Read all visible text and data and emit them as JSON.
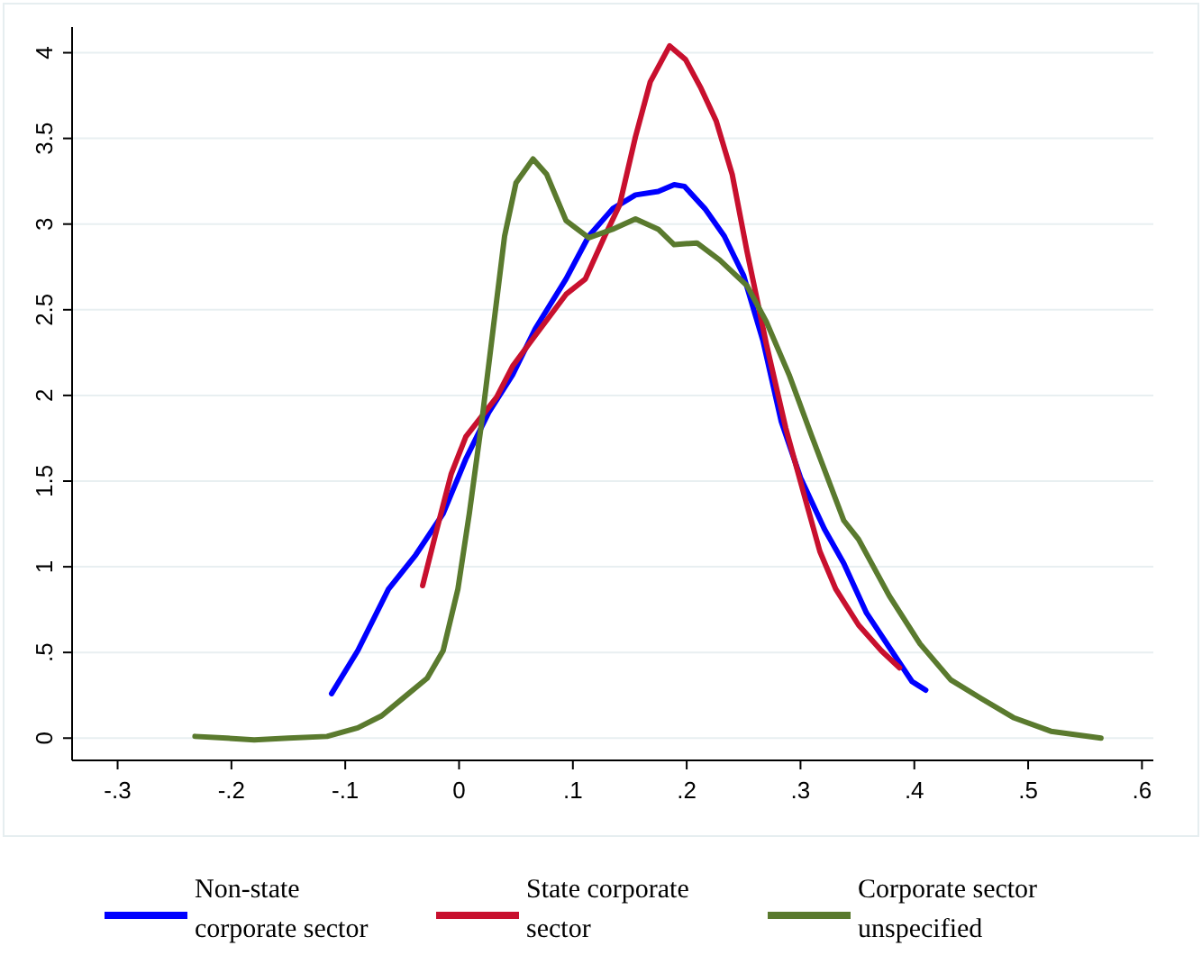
{
  "chart_data": {
    "type": "line",
    "xlim": [
      -0.34,
      0.61
    ],
    "ylim": [
      -0.13,
      4.15
    ],
    "xticks": [
      {
        "value": -0.3,
        "label": "-.3"
      },
      {
        "value": -0.2,
        "label": "-.2"
      },
      {
        "value": -0.1,
        "label": "-.1"
      },
      0,
      {
        "value": 0.1,
        "label": ".1"
      },
      {
        "value": 0.2,
        "label": ".2"
      },
      {
        "value": 0.3,
        "label": ".3"
      },
      {
        "value": 0.4,
        "label": ".4"
      },
      {
        "value": 0.5,
        "label": ".5"
      },
      {
        "value": 0.6,
        "label": ".6"
      }
    ],
    "yticks": [
      0,
      {
        "value": 0.5,
        "label": ".5"
      },
      1,
      1.5,
      2,
      2.5,
      3,
      3.5,
      4
    ],
    "grid": "y",
    "legend": "bottom",
    "marker": "none",
    "line_style": "solid",
    "series": [
      {
        "name": "Non-state corporate sector",
        "color": "#0000ff",
        "x": [
          -0.112,
          -0.089,
          -0.062,
          -0.038,
          -0.014,
          0.006,
          0.026,
          0.047,
          0.067,
          0.094,
          0.114,
          0.135,
          0.155,
          0.175,
          0.189,
          0.198,
          0.216,
          0.233,
          0.25,
          0.267,
          0.283,
          0.3,
          0.321,
          0.338,
          0.358,
          0.378,
          0.398,
          0.41
        ],
        "values": [
          0.26,
          0.51,
          0.87,
          1.07,
          1.31,
          1.63,
          1.9,
          2.12,
          2.39,
          2.68,
          2.93,
          3.09,
          3.17,
          3.19,
          3.23,
          3.22,
          3.09,
          2.93,
          2.7,
          2.32,
          1.85,
          1.52,
          1.22,
          1.02,
          0.73,
          0.53,
          0.33,
          0.28
        ]
      },
      {
        "name": "State corporate sector",
        "color": "#c8102e",
        "x": [
          -0.032,
          -0.021,
          -0.007,
          0.006,
          0.033,
          0.047,
          0.067,
          0.094,
          0.111,
          0.128,
          0.141,
          0.155,
          0.168,
          0.185,
          0.199,
          0.212,
          0.226,
          0.24,
          0.253,
          0.27,
          0.287,
          0.304,
          0.317,
          0.331,
          0.351,
          0.371,
          0.387
        ],
        "values": [
          0.89,
          1.18,
          1.54,
          1.76,
          1.99,
          2.17,
          2.35,
          2.59,
          2.68,
          2.93,
          3.11,
          3.51,
          3.83,
          4.04,
          3.96,
          3.8,
          3.6,
          3.29,
          2.84,
          2.3,
          1.81,
          1.4,
          1.09,
          0.87,
          0.66,
          0.51,
          0.41
        ]
      },
      {
        "name": "Corporate sector unspecified",
        "color": "#5a7a2e",
        "x": [
          -0.232,
          -0.204,
          -0.18,
          -0.15,
          -0.116,
          -0.089,
          -0.068,
          -0.048,
          -0.028,
          -0.014,
          -0.001,
          0.009,
          0.02,
          0.03,
          0.04,
          0.05,
          0.065,
          0.077,
          0.094,
          0.114,
          0.135,
          0.155,
          0.175,
          0.189,
          0.209,
          0.229,
          0.253,
          0.27,
          0.29,
          0.31,
          0.338,
          0.351,
          0.378,
          0.405,
          0.432,
          0.459,
          0.487,
          0.52,
          0.564
        ],
        "values": [
          0.01,
          0.0,
          -0.01,
          0.0,
          0.01,
          0.06,
          0.13,
          0.24,
          0.35,
          0.51,
          0.87,
          1.31,
          1.85,
          2.39,
          2.93,
          3.24,
          3.38,
          3.29,
          3.02,
          2.92,
          2.97,
          3.03,
          2.97,
          2.88,
          2.89,
          2.79,
          2.64,
          2.43,
          2.12,
          1.76,
          1.27,
          1.16,
          0.83,
          0.55,
          0.34,
          0.23,
          0.12,
          0.04,
          0.0
        ]
      }
    ]
  }
}
